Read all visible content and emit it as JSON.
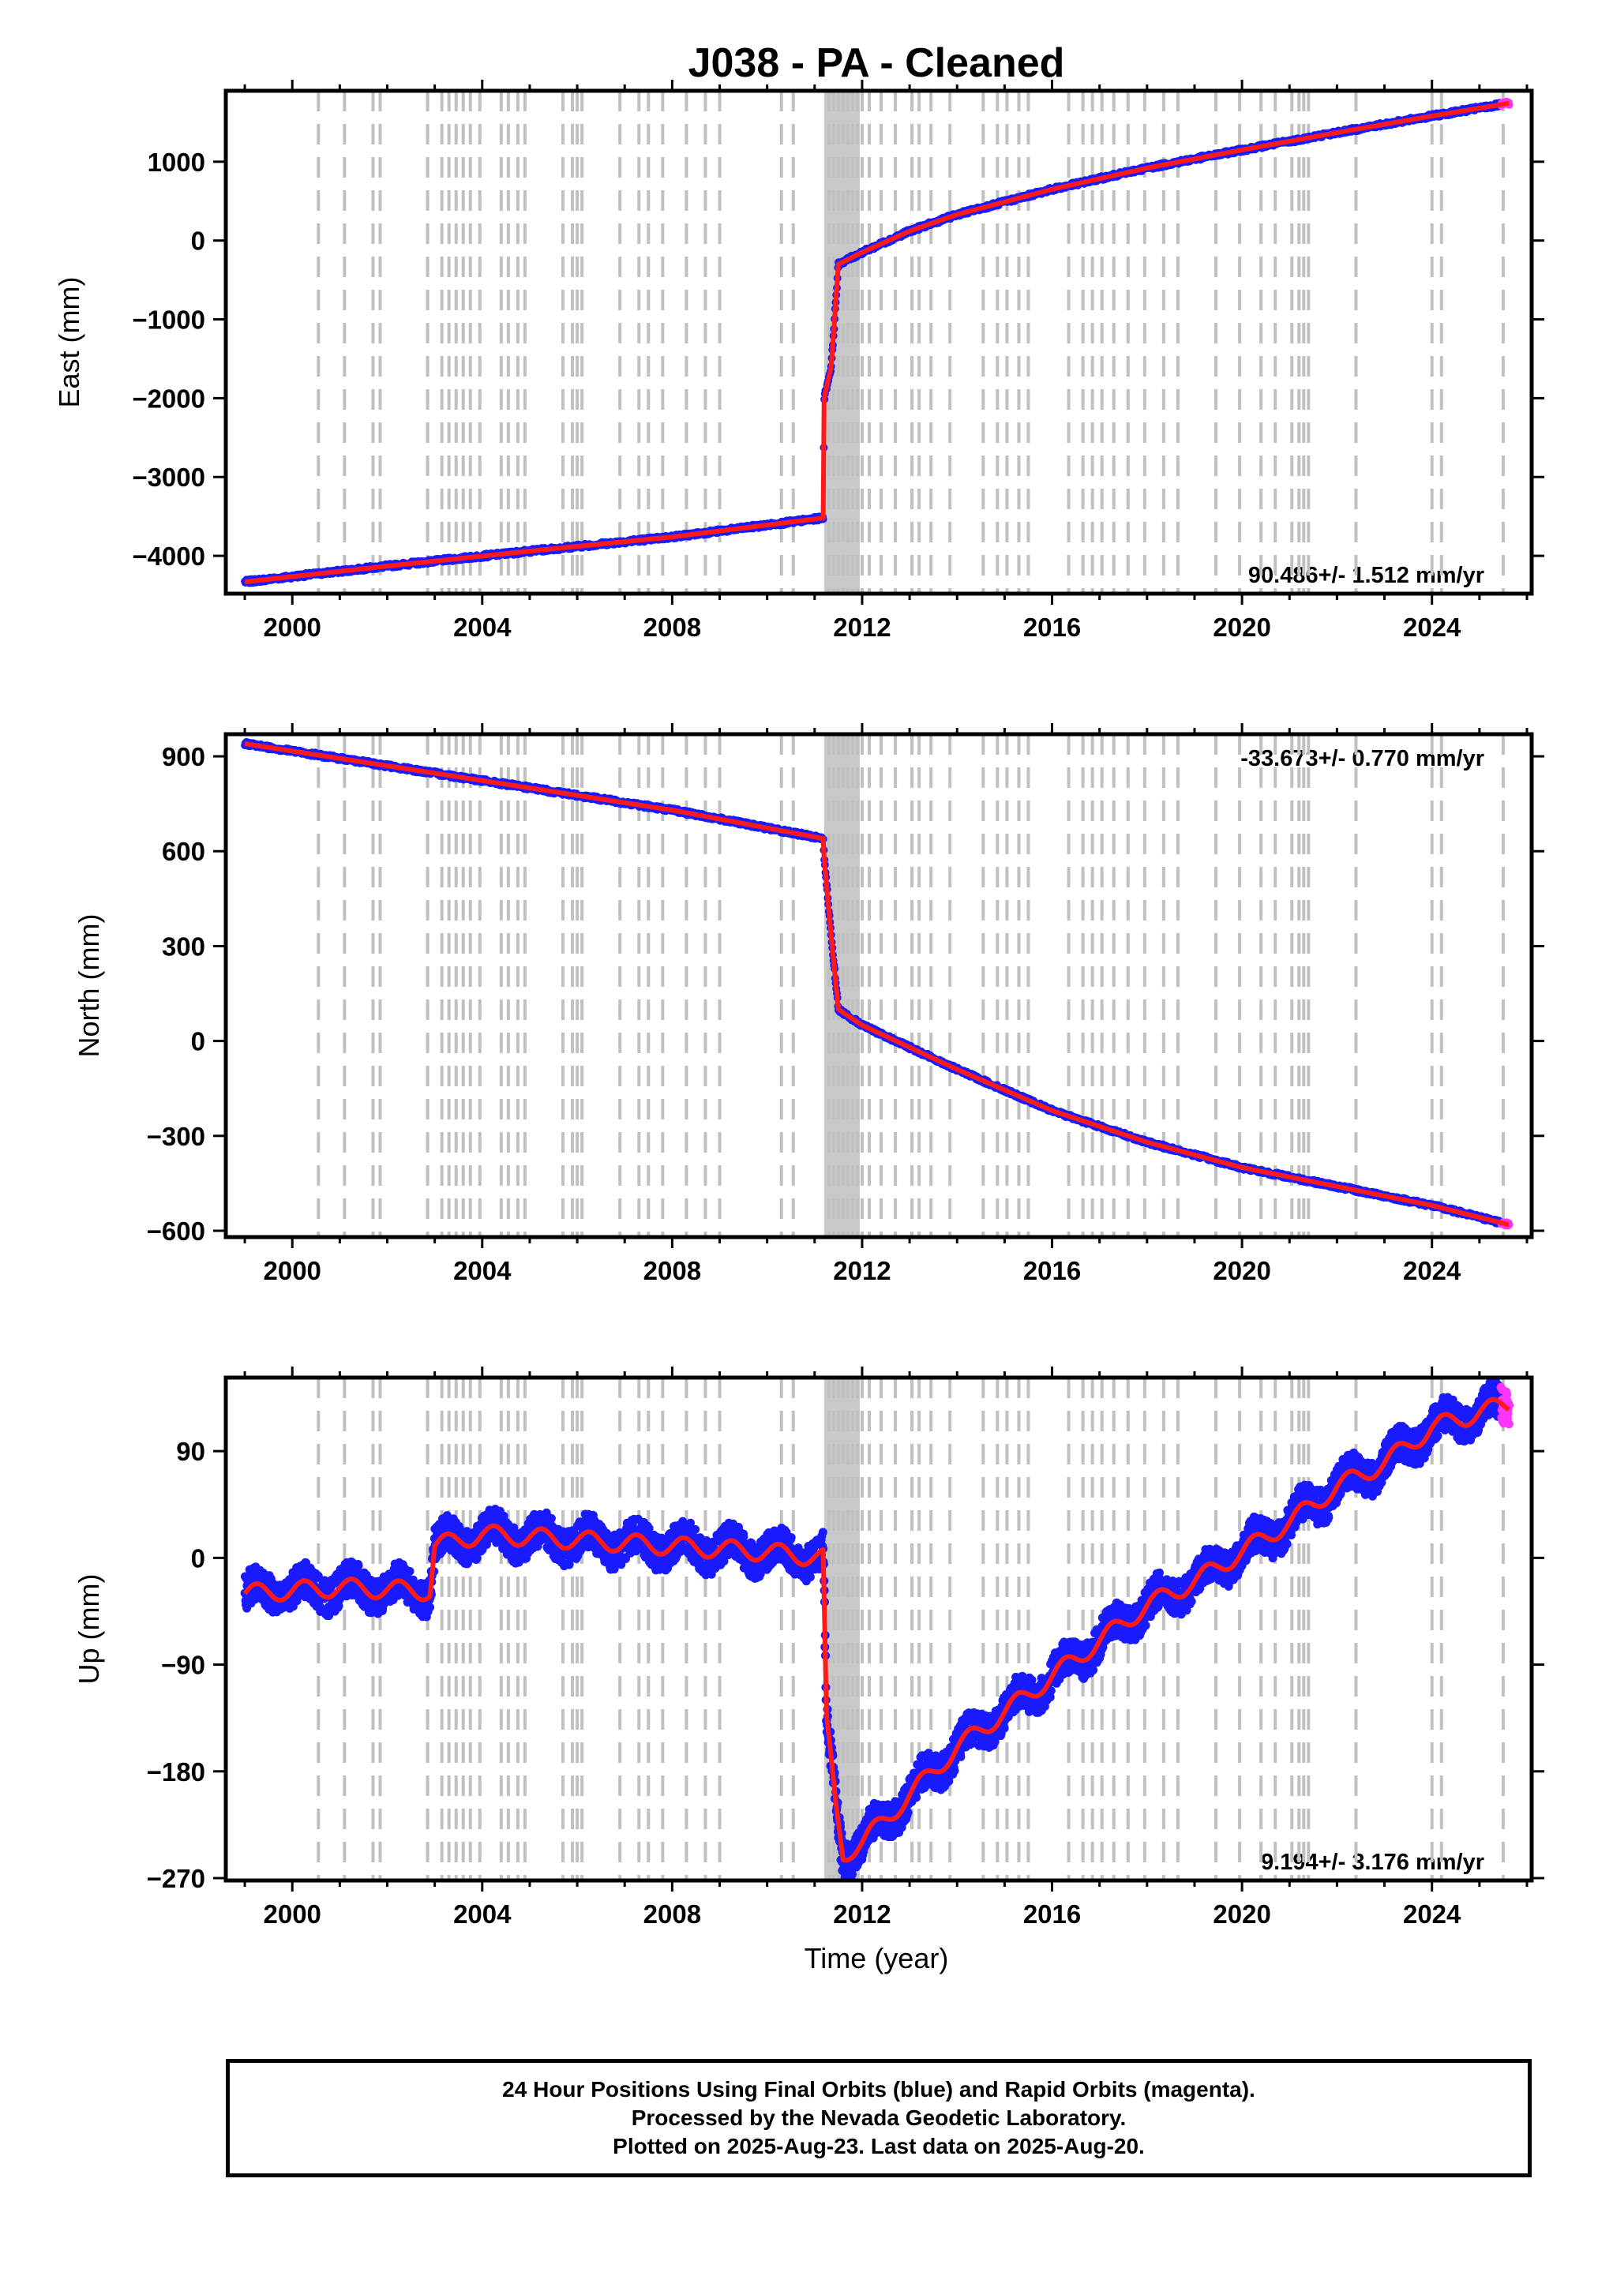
{
  "title": "J038  - PA - Cleaned",
  "colors": {
    "final_orbits": "#1a1aff",
    "rapid_orbits": "#ff33ff",
    "model": "#ff1a1a",
    "event_lines": "#c0c0c0",
    "frame": "#000000"
  },
  "chart_data": [
    {
      "type": "scatter",
      "component": "east",
      "ylabel": "East (mm)",
      "xlabel": "",
      "xlim": [
        1998.6,
        2026.1
      ],
      "ylim": [
        -4480,
        1900
      ],
      "x_ticks": [
        2000,
        2004,
        2008,
        2012,
        2016,
        2020,
        2024
      ],
      "y_ticks": [
        -4000,
        -3000,
        -2000,
        -1000,
        0,
        1000
      ],
      "rate_annotation": "90.486+/- 1.512 mm/yr",
      "rate_position": "bottom-right",
      "series_knots": [
        [
          1999.0,
          -4330
        ],
        [
          2002.0,
          -4130
        ],
        [
          2005.0,
          -3940
        ],
        [
          2008.0,
          -3760
        ],
        [
          2011.18,
          -3520
        ],
        [
          2011.2,
          -2000
        ],
        [
          2011.35,
          -1600
        ],
        [
          2011.5,
          -300
        ],
        [
          2012.0,
          -150
        ],
        [
          2013.0,
          120
        ],
        [
          2014.0,
          330
        ],
        [
          2016.0,
          650
        ],
        [
          2018.0,
          920
        ],
        [
          2020.0,
          1150
        ],
        [
          2022.0,
          1370
        ],
        [
          2024.0,
          1580
        ],
        [
          2025.6,
          1740
        ]
      ]
    },
    {
      "type": "scatter",
      "component": "north",
      "ylabel": "North (mm)",
      "xlabel": "",
      "xlim": [
        1998.6,
        2026.1
      ],
      "ylim": [
        -620,
        970
      ],
      "x_ticks": [
        2000,
        2004,
        2008,
        2012,
        2016,
        2020,
        2024
      ],
      "y_ticks": [
        -600,
        -300,
        0,
        300,
        600,
        900
      ],
      "rate_annotation": "-33.673+/- 0.770 mm/yr",
      "rate_position": "top-right",
      "series_knots": [
        [
          1999.0,
          940
        ],
        [
          2002.0,
          870
        ],
        [
          2005.0,
          800
        ],
        [
          2008.0,
          730
        ],
        [
          2011.18,
          640
        ],
        [
          2011.2,
          580
        ],
        [
          2011.35,
          330
        ],
        [
          2011.5,
          100
        ],
        [
          2012.0,
          50
        ],
        [
          2013.0,
          -20
        ],
        [
          2014.0,
          -90
        ],
        [
          2016.0,
          -220
        ],
        [
          2018.0,
          -320
        ],
        [
          2020.0,
          -400
        ],
        [
          2022.0,
          -460
        ],
        [
          2024.0,
          -520
        ],
        [
          2025.6,
          -580
        ]
      ]
    },
    {
      "type": "scatter",
      "component": "up",
      "ylabel": "Up (mm)",
      "xlabel": "Time (year)",
      "xlim": [
        1998.6,
        2026.1
      ],
      "ylim": [
        -272,
        152
      ],
      "x_ticks": [
        2000,
        2004,
        2008,
        2012,
        2016,
        2020,
        2024
      ],
      "y_ticks": [
        -270,
        -180,
        -90,
        0,
        90
      ],
      "rate_annotation": "9.194+/- 3.176 mm/yr",
      "rate_position": "bottom-right",
      "series_knots": [
        [
          1999.0,
          -30
        ],
        [
          2001.0,
          -25
        ],
        [
          2002.9,
          -28
        ],
        [
          2003.0,
          10
        ],
        [
          2004.0,
          20
        ],
        [
          2006.0,
          15
        ],
        [
          2008.0,
          10
        ],
        [
          2010.0,
          5
        ],
        [
          2011.18,
          0
        ],
        [
          2011.25,
          -140
        ],
        [
          2011.45,
          -210
        ],
        [
          2011.6,
          -250
        ],
        [
          2012.0,
          -240
        ],
        [
          2013.0,
          -200
        ],
        [
          2014.0,
          -160
        ],
        [
          2015.0,
          -130
        ],
        [
          2016.0,
          -100
        ],
        [
          2017.0,
          -70
        ],
        [
          2018.0,
          -40
        ],
        [
          2019.0,
          -20
        ],
        [
          2020.0,
          5
        ],
        [
          2021.0,
          30
        ],
        [
          2022.0,
          60
        ],
        [
          2023.0,
          80
        ],
        [
          2024.0,
          110
        ],
        [
          2025.6,
          130
        ]
      ]
    }
  ],
  "event_lines_years": [
    2000.55,
    2001.1,
    2001.7,
    2001.85,
    2002.85,
    2003.15,
    2003.3,
    2003.45,
    2003.6,
    2003.75,
    2003.95,
    2004.4,
    2004.55,
    2004.75,
    2004.9,
    2005.7,
    2005.9,
    2006.0,
    2006.1,
    2006.9,
    2007.3,
    2007.5,
    2007.8,
    2008.3,
    2008.7,
    2009.0,
    2010.3,
    2010.55,
    2011.3,
    2011.4,
    2011.5,
    2011.6,
    2011.7,
    2011.8,
    2011.9,
    2012.0,
    2012.15,
    2012.4,
    2012.7,
    2013.05,
    2013.2,
    2013.45,
    2013.85,
    2014.55,
    2014.85,
    2015.05,
    2015.3,
    2015.5,
    2016.35,
    2016.65,
    2016.85,
    2017.05,
    2017.3,
    2017.6,
    2017.95,
    2018.35,
    2018.65,
    2019.45,
    2019.95,
    2020.4,
    2020.7,
    2021.05,
    2021.2,
    2021.3,
    2021.4,
    2022.4,
    2024.0,
    2024.2,
    2025.5
  ],
  "event_shaded_band": [
    2011.2,
    2011.95
  ],
  "footer": {
    "line1": "24 Hour Positions Using Final Orbits (blue) and Rapid Orbits (magenta).",
    "line2": "Processed by the Nevada Geodetic Laboratory.",
    "line3": "Plotted on 2025-Aug-23. Last data on 2025-Aug-20."
  }
}
